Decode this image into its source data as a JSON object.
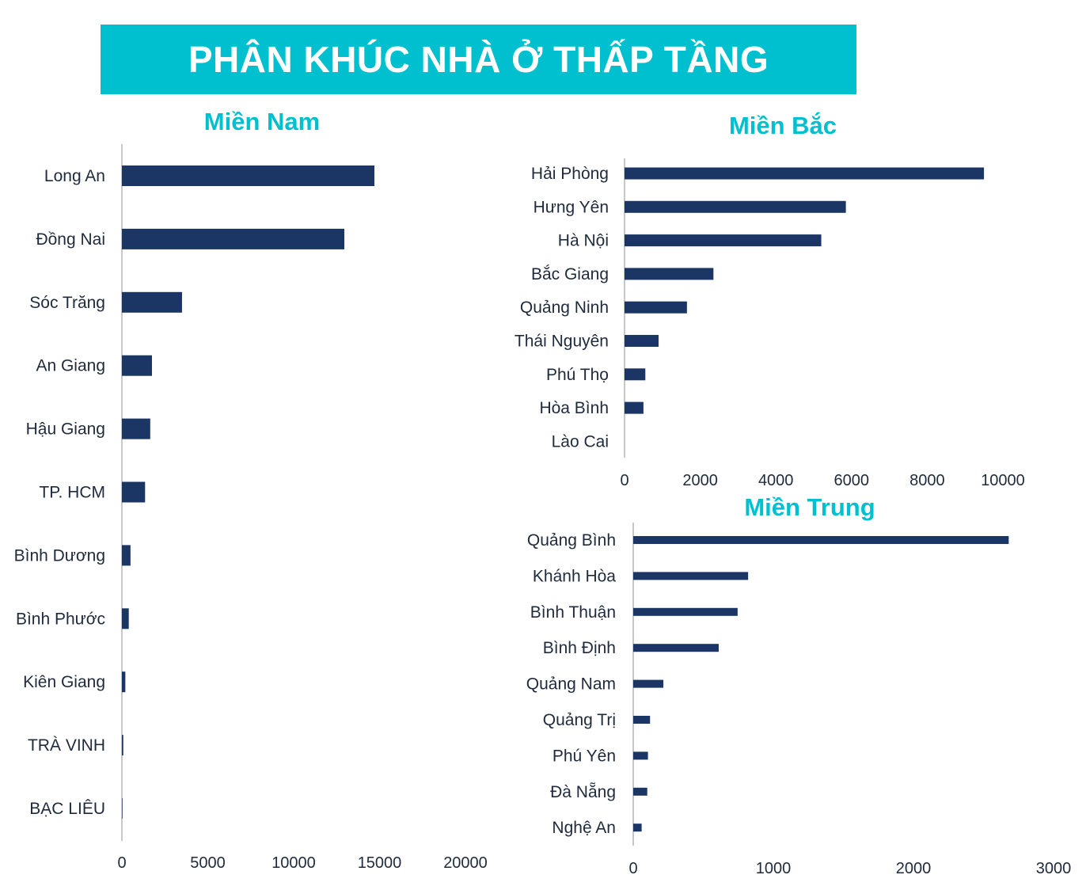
{
  "header": {
    "title": "PHÂN KHÚC NHÀ Ở THẤP TẦNG"
  },
  "colors": {
    "banner": "#00c0cf",
    "bar": "#1b3564",
    "axis": "#c8c8c8"
  },
  "chart_data": [
    {
      "type": "bar",
      "orientation": "horizontal",
      "title": "Miền Nam",
      "categories": [
        "Long An",
        "Đồng Nai",
        "Sóc Trăng",
        "An Giang",
        "Hậu Giang",
        "TP. HCM",
        "Bình Dương",
        "Bình Phước",
        "Kiên Giang",
        "TRÀ VINH",
        "BẠC LIÊU"
      ],
      "values": [
        14700,
        12950,
        3500,
        1750,
        1650,
        1350,
        500,
        400,
        200,
        80,
        30
      ],
      "xlim": [
        0,
        20000
      ],
      "xticks": [
        0,
        5000,
        10000,
        15000,
        20000
      ]
    },
    {
      "type": "bar",
      "orientation": "horizontal",
      "title": "Miền Bắc",
      "categories": [
        "Hải Phòng",
        "Hưng Yên",
        "Hà Nội",
        "Bắc Giang",
        "Quảng Ninh",
        "Thái Nguyên",
        "Phú Thọ",
        "Hòa Bình",
        "Lào Cai"
      ],
      "values": [
        9500,
        5850,
        5200,
        2350,
        1650,
        900,
        550,
        500,
        0
      ],
      "xlim": [
        0,
        10000
      ],
      "xticks": [
        0,
        2000,
        4000,
        6000,
        8000,
        10000
      ]
    },
    {
      "type": "bar",
      "orientation": "horizontal",
      "title": "Miền Trung",
      "categories": [
        "Quảng Bình",
        "Khánh Hòa",
        "Bình Thuận",
        "Bình Định",
        "Quảng Nam",
        "Quảng Trị",
        "Phú Yên",
        "Đà Nẵng",
        "Nghệ An"
      ],
      "values": [
        2680,
        820,
        745,
        610,
        215,
        120,
        105,
        100,
        60
      ],
      "xlim": [
        0,
        3000
      ],
      "xticks": [
        0,
        1000,
        2000,
        3000
      ]
    }
  ]
}
